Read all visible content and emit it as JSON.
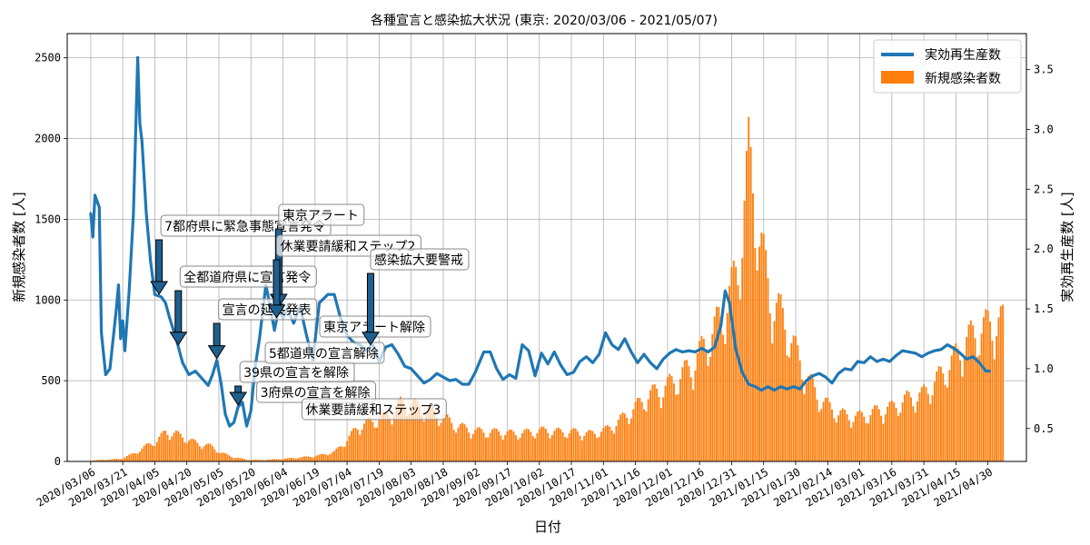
{
  "chart_data": {
    "type": "bar",
    "title": "各種宣言と感染拡大状況 (東京: 2020/03/06 - 2021/05/07)",
    "xlabel": "日付",
    "ylabel_left": "新規感染者数 [人]",
    "ylabel_right": "実効再生産数 [人]",
    "legend_position": "top-right",
    "grid": true,
    "start_date": "2020-03-06",
    "end_date": "2021-05-07",
    "x_ticks": [
      "2020/03/06",
      "2020/03/21",
      "2020/04/05",
      "2020/04/20",
      "2020/05/05",
      "2020/05/20",
      "2020/06/04",
      "2020/06/19",
      "2020/07/04",
      "2020/07/19",
      "2020/08/03",
      "2020/08/18",
      "2020/09/02",
      "2020/09/17",
      "2020/10/02",
      "2020/10/17",
      "2020/11/01",
      "2020/11/16",
      "2020/12/01",
      "2020/12/16",
      "2020/12/31",
      "2021/01/15",
      "2021/01/30",
      "2021/02/14",
      "2021/03/01",
      "2021/03/16",
      "2021/03/31",
      "2021/04/15",
      "2021/04/30"
    ],
    "y_left_ticks": [
      0,
      500,
      1000,
      1500,
      2000,
      2500
    ],
    "y_left_range": [
      0,
      2650
    ],
    "y_right_ticks": [
      "0.5",
      "1.0",
      "1.5",
      "2.0",
      "2.5",
      "3.0",
      "3.5"
    ],
    "y_right_range": [
      0.225,
      3.8
    ],
    "series": [
      {
        "name": "実効再生産数",
        "kind": "line",
        "axis": "right",
        "color": "#1f77b4",
        "points": [
          [
            "2020-03-06",
            2.3
          ],
          [
            "2020-03-07",
            2.1
          ],
          [
            "2020-03-08",
            2.45
          ],
          [
            "2020-03-10",
            2.35
          ],
          [
            "2020-03-11",
            1.3
          ],
          [
            "2020-03-13",
            0.95
          ],
          [
            "2020-03-15",
            1.0
          ],
          [
            "2020-03-18",
            1.5
          ],
          [
            "2020-03-19",
            1.7
          ],
          [
            "2020-03-20",
            1.25
          ],
          [
            "2020-03-21",
            1.4
          ],
          [
            "2020-03-22",
            1.15
          ],
          [
            "2020-03-24",
            1.65
          ],
          [
            "2020-03-26",
            2.3
          ],
          [
            "2020-03-28",
            3.6
          ],
          [
            "2020-03-29",
            3.05
          ],
          [
            "2020-03-30",
            2.9
          ],
          [
            "2020-04-01",
            2.3
          ],
          [
            "2020-04-03",
            1.9
          ],
          [
            "2020-04-05",
            1.62
          ],
          [
            "2020-04-08",
            1.6
          ],
          [
            "2020-04-10",
            1.55
          ],
          [
            "2020-04-12",
            1.42
          ],
          [
            "2020-04-15",
            1.25
          ],
          [
            "2020-04-18",
            1.05
          ],
          [
            "2020-04-21",
            0.95
          ],
          [
            "2020-04-24",
            0.98
          ],
          [
            "2020-04-27",
            0.92
          ],
          [
            "2020-04-30",
            0.86
          ],
          [
            "2020-05-02",
            0.95
          ],
          [
            "2020-05-04",
            1.07
          ],
          [
            "2020-05-06",
            0.88
          ],
          [
            "2020-05-08",
            0.62
          ],
          [
            "2020-05-10",
            0.52
          ],
          [
            "2020-05-12",
            0.55
          ],
          [
            "2020-05-14",
            0.68
          ],
          [
            "2020-05-16",
            0.72
          ],
          [
            "2020-05-18",
            0.52
          ],
          [
            "2020-05-20",
            0.65
          ],
          [
            "2020-05-22",
            1.02
          ],
          [
            "2020-05-24",
            1.25
          ],
          [
            "2020-05-25",
            1.4
          ],
          [
            "2020-05-27",
            1.7
          ],
          [
            "2020-05-29",
            1.52
          ],
          [
            "2020-05-31",
            1.32
          ],
          [
            "2020-06-02",
            1.5
          ],
          [
            "2020-06-04",
            1.42
          ],
          [
            "2020-06-06",
            1.5
          ],
          [
            "2020-06-09",
            1.38
          ],
          [
            "2020-06-12",
            1.52
          ],
          [
            "2020-06-15",
            1.28
          ],
          [
            "2020-06-18",
            1.07
          ],
          [
            "2020-06-21",
            1.55
          ],
          [
            "2020-06-25",
            1.62
          ],
          [
            "2020-06-28",
            1.62
          ],
          [
            "2020-07-01",
            1.42
          ],
          [
            "2020-07-04",
            1.28
          ],
          [
            "2020-07-07",
            1.22
          ],
          [
            "2020-07-10",
            1.2
          ],
          [
            "2020-07-13",
            1.15
          ],
          [
            "2020-07-16",
            1.2
          ],
          [
            "2020-07-19",
            1.06
          ],
          [
            "2020-07-22",
            1.18
          ],
          [
            "2020-07-25",
            1.2
          ],
          [
            "2020-07-28",
            1.12
          ],
          [
            "2020-07-31",
            1.02
          ],
          [
            "2020-08-03",
            1.0
          ],
          [
            "2020-08-06",
            0.94
          ],
          [
            "2020-08-09",
            0.88
          ],
          [
            "2020-08-12",
            0.91
          ],
          [
            "2020-08-15",
            0.96
          ],
          [
            "2020-08-18",
            0.93
          ],
          [
            "2020-08-21",
            0.9
          ],
          [
            "2020-08-24",
            0.91
          ],
          [
            "2020-08-27",
            0.87
          ],
          [
            "2020-08-30",
            0.87
          ],
          [
            "2020-09-02",
            0.97
          ],
          [
            "2020-09-06",
            1.14
          ],
          [
            "2020-09-09",
            1.14
          ],
          [
            "2020-09-12",
            1.0
          ],
          [
            "2020-09-15",
            0.91
          ],
          [
            "2020-09-18",
            0.95
          ],
          [
            "2020-09-21",
            0.92
          ],
          [
            "2020-09-24",
            1.2
          ],
          [
            "2020-09-27",
            1.15
          ],
          [
            "2020-09-30",
            0.94
          ],
          [
            "2020-10-03",
            1.13
          ],
          [
            "2020-10-06",
            1.04
          ],
          [
            "2020-10-09",
            1.14
          ],
          [
            "2020-10-12",
            1.03
          ],
          [
            "2020-10-15",
            0.95
          ],
          [
            "2020-10-18",
            0.97
          ],
          [
            "2020-10-21",
            1.06
          ],
          [
            "2020-10-24",
            1.1
          ],
          [
            "2020-10-27",
            1.05
          ],
          [
            "2020-10-30",
            1.12
          ],
          [
            "2020-11-02",
            1.3
          ],
          [
            "2020-11-05",
            1.2
          ],
          [
            "2020-11-08",
            1.16
          ],
          [
            "2020-11-11",
            1.25
          ],
          [
            "2020-11-14",
            1.14
          ],
          [
            "2020-11-17",
            1.05
          ],
          [
            "2020-11-20",
            1.12
          ],
          [
            "2020-11-23",
            1.05
          ],
          [
            "2020-11-26",
            1.0
          ],
          [
            "2020-11-29",
            1.08
          ],
          [
            "2020-12-02",
            1.13
          ],
          [
            "2020-12-05",
            1.16
          ],
          [
            "2020-12-08",
            1.14
          ],
          [
            "2020-12-11",
            1.15
          ],
          [
            "2020-12-14",
            1.14
          ],
          [
            "2020-12-17",
            1.17
          ],
          [
            "2020-12-20",
            1.14
          ],
          [
            "2020-12-23",
            1.18
          ],
          [
            "2020-12-26",
            1.36
          ],
          [
            "2020-12-28",
            1.65
          ],
          [
            "2020-12-30",
            1.55
          ],
          [
            "2021-01-02",
            1.16
          ],
          [
            "2021-01-05",
            0.97
          ],
          [
            "2021-01-08",
            0.87
          ],
          [
            "2021-01-11",
            0.85
          ],
          [
            "2021-01-14",
            0.82
          ],
          [
            "2021-01-17",
            0.85
          ],
          [
            "2021-01-20",
            0.82
          ],
          [
            "2021-01-23",
            0.85
          ],
          [
            "2021-01-26",
            0.83
          ],
          [
            "2021-01-29",
            0.85
          ],
          [
            "2021-02-01",
            0.83
          ],
          [
            "2021-02-04",
            0.9
          ],
          [
            "2021-02-07",
            0.94
          ],
          [
            "2021-02-10",
            0.96
          ],
          [
            "2021-02-13",
            0.93
          ],
          [
            "2021-02-16",
            0.88
          ],
          [
            "2021-02-19",
            0.96
          ],
          [
            "2021-02-22",
            1.0
          ],
          [
            "2021-02-25",
            0.99
          ],
          [
            "2021-02-28",
            1.06
          ],
          [
            "2021-03-03",
            1.05
          ],
          [
            "2021-03-06",
            1.1
          ],
          [
            "2021-03-09",
            1.06
          ],
          [
            "2021-03-12",
            1.08
          ],
          [
            "2021-03-15",
            1.06
          ],
          [
            "2021-03-18",
            1.11
          ],
          [
            "2021-03-21",
            1.15
          ],
          [
            "2021-03-24",
            1.14
          ],
          [
            "2021-03-27",
            1.13
          ],
          [
            "2021-03-30",
            1.1
          ],
          [
            "2021-04-02",
            1.13
          ],
          [
            "2021-04-05",
            1.15
          ],
          [
            "2021-04-08",
            1.16
          ],
          [
            "2021-04-11",
            1.2
          ],
          [
            "2021-04-14",
            1.17
          ],
          [
            "2021-04-17",
            1.13
          ],
          [
            "2021-04-20",
            1.08
          ],
          [
            "2021-04-23",
            1.1
          ],
          [
            "2021-04-26",
            1.05
          ],
          [
            "2021-04-29",
            0.98
          ],
          [
            "2021-05-01",
            0.98
          ]
        ]
      },
      {
        "name": "新規感染者数",
        "kind": "bar",
        "axis": "left",
        "color": "#ff7f0e",
        "points": [
          [
            "2020-03-06",
            5
          ],
          [
            "2020-03-20",
            15
          ],
          [
            "2020-03-27",
            50
          ],
          [
            "2020-04-01",
            90
          ],
          [
            "2020-04-06",
            120
          ],
          [
            "2020-04-10",
            170
          ],
          [
            "2020-04-15",
            160
          ],
          [
            "2020-04-20",
            130
          ],
          [
            "2020-04-26",
            100
          ],
          [
            "2020-05-01",
            90
          ],
          [
            "2020-05-06",
            50
          ],
          [
            "2020-05-12",
            25
          ],
          [
            "2020-05-18",
            10
          ],
          [
            "2020-05-24",
            8
          ],
          [
            "2020-05-31",
            12
          ],
          [
            "2020-06-07",
            18
          ],
          [
            "2020-06-14",
            25
          ],
          [
            "2020-06-21",
            35
          ],
          [
            "2020-06-28",
            55
          ],
          [
            "2020-07-03",
            110
          ],
          [
            "2020-07-09",
            200
          ],
          [
            "2020-07-15",
            230
          ],
          [
            "2020-07-22",
            260
          ],
          [
            "2020-07-29",
            330
          ],
          [
            "2020-08-03",
            330
          ],
          [
            "2020-08-10",
            300
          ],
          [
            "2020-08-17",
            260
          ],
          [
            "2020-08-24",
            210
          ],
          [
            "2020-08-31",
            180
          ],
          [
            "2020-09-07",
            170
          ],
          [
            "2020-09-14",
            170
          ],
          [
            "2020-09-21",
            160
          ],
          [
            "2020-09-28",
            170
          ],
          [
            "2020-10-05",
            180
          ],
          [
            "2020-10-12",
            170
          ],
          [
            "2020-10-19",
            170
          ],
          [
            "2020-10-26",
            160
          ],
          [
            "2020-11-02",
            180
          ],
          [
            "2020-11-08",
            230
          ],
          [
            "2020-11-15",
            300
          ],
          [
            "2020-11-22",
            380
          ],
          [
            "2020-11-29",
            420
          ],
          [
            "2020-12-06",
            480
          ],
          [
            "2020-12-13",
            560
          ],
          [
            "2020-12-20",
            700
          ],
          [
            "2020-12-27",
            850
          ],
          [
            "2021-01-03",
            1100
          ],
          [
            "2021-01-08",
            1750
          ],
          [
            "2021-01-13",
            1300
          ],
          [
            "2021-01-18",
            950
          ],
          [
            "2021-01-23",
            850
          ],
          [
            "2021-01-28",
            700
          ],
          [
            "2021-02-02",
            540
          ],
          [
            "2021-02-09",
            380
          ],
          [
            "2021-02-16",
            300
          ],
          [
            "2021-02-23",
            260
          ],
          [
            "2021-03-02",
            260
          ],
          [
            "2021-03-09",
            290
          ],
          [
            "2021-03-16",
            310
          ],
          [
            "2021-03-23",
            360
          ],
          [
            "2021-03-30",
            380
          ],
          [
            "2021-04-06",
            470
          ],
          [
            "2021-04-13",
            570
          ],
          [
            "2021-04-20",
            700
          ],
          [
            "2021-04-27",
            760
          ],
          [
            "2021-05-01",
            790
          ],
          [
            "2021-05-07",
            800
          ]
        ]
      }
    ],
    "annotations": [
      {
        "text": "7都府県に緊急事態宣言発令",
        "date": "2020-04-07"
      },
      {
        "text": "全都道府県に宣言発令",
        "date": "2020-04-16"
      },
      {
        "text": "宣言の延長発表",
        "date": "2020-05-04"
      },
      {
        "text": "39県の宣言を解除",
        "date": "2020-05-14"
      },
      {
        "text": "3府県の宣言を解除",
        "date": "2020-05-21"
      },
      {
        "text": "5都道県の宣言解除",
        "date": "2020-05-25"
      },
      {
        "text": "休業要請緩和ステップ3",
        "date": "2020-06-12"
      },
      {
        "text": "東京アラート解除",
        "date": "2020-06-11"
      },
      {
        "text": "東京アラート",
        "date": "2020-06-02"
      },
      {
        "text": "休業要請緩和ステップ2",
        "date": "2020-06-01"
      },
      {
        "text": "感染拡大要警戒",
        "date": "2020-07-15"
      }
    ]
  }
}
